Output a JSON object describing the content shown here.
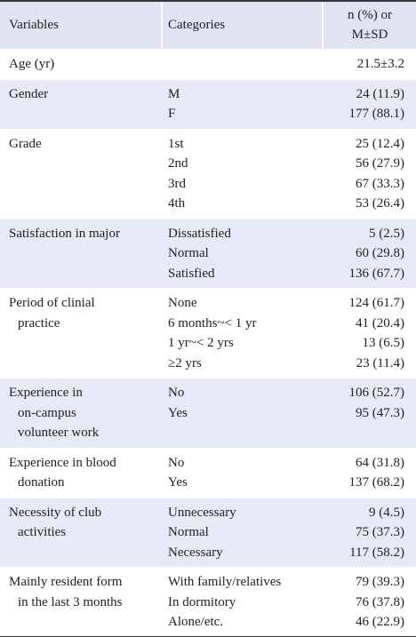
{
  "table": {
    "header": [
      "Variables",
      "Categories",
      [
        "n (%) or",
        "M±SD"
      ]
    ],
    "groups": [
      {
        "variable": [
          "Age (yr)"
        ],
        "categories": [],
        "values": [
          "21.5±3.2"
        ]
      },
      {
        "variable": [
          "Gender"
        ],
        "categories": [
          "M",
          "F"
        ],
        "values": [
          "24 (11.9)",
          "177 (88.1)"
        ]
      },
      {
        "variable": [
          "Grade"
        ],
        "categories": [
          "1st",
          "2nd",
          "3rd",
          "4th"
        ],
        "values": [
          "25 (12.4)",
          "56 (27.9)",
          "67 (33.3)",
          "53 (26.4)"
        ]
      },
      {
        "variable": [
          "Satisfaction in major"
        ],
        "categories": [
          "Dissatisfied",
          "Normal",
          "Satisfied"
        ],
        "values": [
          "5 (2.5)",
          "60 (29.8)",
          "136 (67.7)"
        ]
      },
      {
        "variable": [
          "Period of clinial",
          "practice"
        ],
        "categories": [
          "None",
          "6 months~< 1 yr",
          "1 yr~< 2 yrs",
          "≥2 yrs"
        ],
        "values": [
          "124 (61.7)",
          "41 (20.4)",
          "13 (6.5)",
          "23 (11.4)"
        ]
      },
      {
        "variable": [
          "Experience in",
          "on-campus",
          "volunteer work"
        ],
        "categories": [
          "No",
          "Yes"
        ],
        "values": [
          "106 (52.7)",
          "95 (47.3)"
        ]
      },
      {
        "variable": [
          "Experience in blood",
          "donation"
        ],
        "categories": [
          "No",
          "Yes"
        ],
        "values": [
          "64 (31.8)",
          "137 (68.2)"
        ]
      },
      {
        "variable": [
          "Necessity of club",
          "activities"
        ],
        "categories": [
          "Unnecessary",
          "Normal",
          "Necessary"
        ],
        "values": [
          "9 (4.5)",
          "75 (37.3)",
          "117 (58.2)"
        ]
      },
      {
        "variable": [
          "Mainly resident form",
          "in the last 3 months"
        ],
        "categories": [
          "With family/relatives",
          "In dormitory",
          "Alone/etc."
        ],
        "values": [
          "79 (39.3)",
          "76 (37.8)",
          "46 (22.9)"
        ]
      }
    ]
  }
}
